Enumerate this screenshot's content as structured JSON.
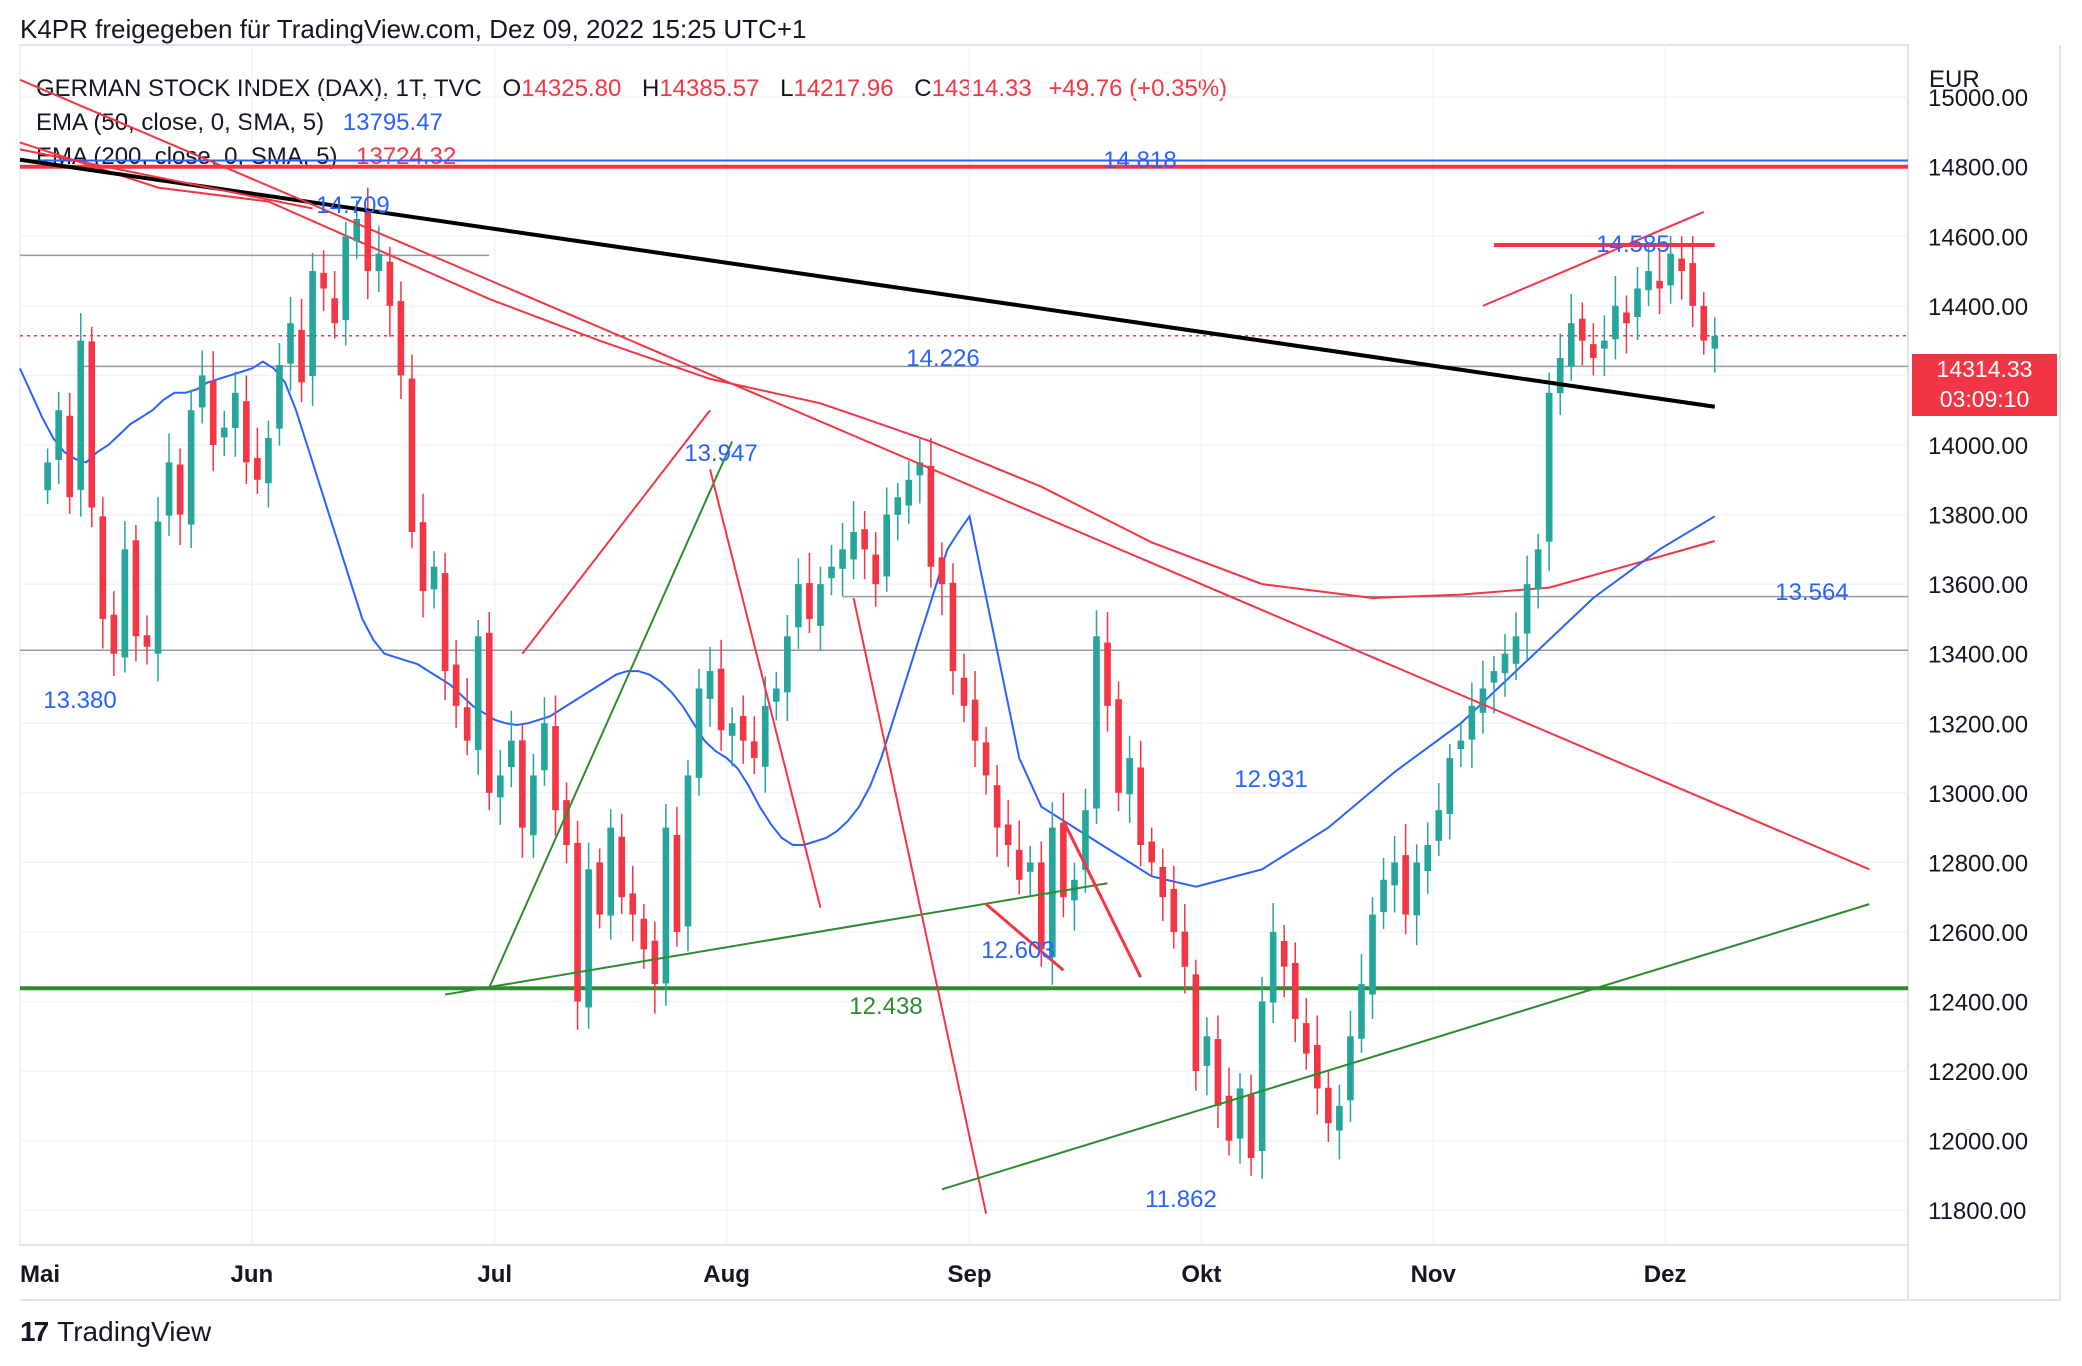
{
  "header": {
    "title": "K4PR freigegeben für TradingView.com, Dez 09, 2022 15:25 UTC+1"
  },
  "legend": {
    "symbol": "GERMAN STOCK INDEX (DAX), 1T, TVC",
    "open_label": "O",
    "open": "14325.80",
    "high_label": "H",
    "high": "14385.57",
    "low_label": "L",
    "low": "14217.96",
    "close_label": "C",
    "close": "14314.33",
    "change": "+49.76 (+0.35%)",
    "ema50_label": "EMA (50, close, 0, SMA, 5)",
    "ema50_value": "13795.47",
    "ema200_label": "EMA (200, close, 0, SMA, 5)",
    "ema200_value": "13724.32"
  },
  "price_axis": {
    "currency": "EUR",
    "current_price": "14314.33",
    "countdown": "03:09:10"
  },
  "footer": {
    "brand": "TradingView",
    "logo_mark": "17"
  },
  "colors": {
    "up": "#26a69a",
    "down": "#f23645",
    "ema50": "#2962ff",
    "ema200": "#f23645",
    "trend_black": "#000000",
    "support_green": "#2e8b2e",
    "resistance_red": "#f23645",
    "level_gray": "#9598a1",
    "annotation_blue": "#2962ff"
  },
  "chart_data": {
    "type": "candlestick",
    "title": "GERMAN STOCK INDEX (DAX), 1T, TVC",
    "ylabel": "EUR",
    "ylim": [
      11700,
      15150
    ],
    "y_ticks": [
      15000,
      14800,
      14600,
      14400,
      14200,
      14000,
      13800,
      13600,
      13400,
      13200,
      13000,
      12800,
      12600,
      12400,
      12200,
      12000,
      11800
    ],
    "y_tick_labels": [
      "15000.00",
      "14800.00",
      "14600.00",
      "14400.00",
      "14200.00",
      "14000.00",
      "13800.00",
      "13600.00",
      "13400.00",
      "13200.00",
      "13000.00",
      "12800.00",
      "12600.00",
      "12400.00",
      "12200.00",
      "12000.00",
      "11800.00"
    ],
    "x_tick_labels": [
      "Mai",
      "Jun",
      "Jul",
      "Aug",
      "Sep",
      "Okt",
      "Nov",
      "Dez"
    ],
    "x_tick_index": [
      -2.5,
      18.5,
      40.5,
      61.5,
      83.5,
      104.5,
      125.5,
      146.5
    ],
    "x_range": [
      -2.5,
      168.5
    ],
    "grid": true,
    "last_index": 151,
    "closes": [
      13950,
      14100,
      13850,
      14300,
      13820,
      13500,
      13400,
      13700,
      13450,
      13420,
      13780,
      13950,
      13800,
      14100,
      14200,
      14000,
      14050,
      14150,
      13950,
      13900,
      14020,
      14230,
      14350,
      14180,
      14500,
      14450,
      14350,
      14600,
      14650,
      14500,
      14550,
      14400,
      14200,
      13750,
      13580,
      13650,
      13350,
      13250,
      13150,
      13450,
      13000,
      13050,
      13150,
      12900,
      13050,
      13200,
      12950,
      12850,
      12400,
      12780,
      12650,
      12900,
      12700,
      12650,
      12550,
      12450,
      12900,
      12600,
      13050,
      13300,
      13350,
      13180,
      13200,
      13150,
      13100,
      13250,
      13300,
      13450,
      13600,
      13500,
      13600,
      13650,
      13700,
      13750,
      13700,
      13600,
      13800,
      13850,
      13900,
      13950,
      13650,
      13600,
      13350,
      13250,
      13150,
      13050,
      12900,
      12850,
      12750,
      12800,
      12550,
      12900,
      12700,
      12750,
      12950,
      13450,
      13250,
      13000,
      13100,
      12850,
      12800,
      12700,
      12600,
      12500,
      12200,
      12300,
      12100,
      12000,
      12150,
      11950,
      12400,
      12600,
      12500,
      12350,
      12250,
      12150,
      12050,
      12100,
      12300,
      12450,
      12650,
      12750,
      12800,
      12650,
      12800,
      12850,
      12950,
      13100,
      13150,
      13250,
      13300,
      13350,
      13400,
      13450,
      13600,
      13700,
      14150,
      14250,
      14350,
      14300,
      14250,
      14300,
      14400,
      14350,
      14450,
      14500,
      14450,
      14550,
      14500,
      14400,
      14300,
      14314
    ],
    "ema50": [
      14220,
      14150,
      14080,
      14020,
      13980,
      13960,
      13950,
      13980,
      14000,
      14030,
      14060,
      14080,
      14100,
      14130,
      14150,
      14150,
      14160,
      14180,
      14190,
      14200,
      14210,
      14220,
      14240,
      14220,
      14180,
      14100,
      14000,
      13900,
      13800,
      13700,
      13600,
      13500,
      13440,
      13400,
      13390,
      13380,
      13370,
      13350,
      13330,
      13310,
      13280,
      13250,
      13230,
      13210,
      13200,
      13195,
      13200,
      13210,
      13220,
      13240,
      13260,
      13280,
      13300,
      13320,
      13340,
      13350,
      13350,
      13340,
      13320,
      13290,
      13250,
      13200,
      13150,
      13120,
      13100,
      13070,
      13020,
      12960,
      12910,
      12870,
      12850,
      12850,
      12860,
      12870,
      12890,
      12920,
      12960,
      13020,
      13100,
      13200,
      13300,
      13400,
      13500,
      13600,
      13700,
      13750,
      13795
    ],
    "ema50_x": [
      -2.5,
      -1.5,
      -0.5,
      0.5,
      1.5,
      2.5,
      3.5,
      4.5,
      5.5,
      6.5,
      7.5,
      8.5,
      9.5,
      10.5,
      11.5,
      12.5,
      13.5,
      14.5,
      15.5,
      16.5,
      17.5,
      18.5,
      19.5,
      20.5,
      21.5,
      22.5,
      23.5,
      24.5,
      25.5,
      26.5,
      27.5,
      28.5,
      29.5,
      30.5,
      31.5,
      32.5,
      33.5,
      34.5,
      35.5,
      36.5,
      37.5,
      38.5,
      39.5,
      40.5,
      41.5,
      42.5,
      43.5,
      44.5,
      45.5,
      46.5,
      47.5,
      48.5,
      49.5,
      50.5,
      51.5,
      52.5,
      53.5,
      54.5,
      55.5,
      56.5,
      57.5,
      58.5,
      59.5,
      60.5,
      61.5,
      62.5,
      63.5,
      64.5,
      65.5,
      66.5,
      67.5,
      68.5,
      69.5,
      70.5,
      71.5,
      72.5,
      73.5,
      74.5,
      75.5,
      76.5,
      77.5,
      78.5,
      79.5,
      80.5,
      81.5,
      82.5,
      83.5
    ],
    "annotations": [
      {
        "text": "14.818",
        "price": 14818
      },
      {
        "text": "14.709",
        "price": 14709
      },
      {
        "text": "14.585",
        "price": 14585
      },
      {
        "text": "14.226",
        "price": 14226
      },
      {
        "text": "13.947",
        "price": 13947
      },
      {
        "text": "13.564",
        "price": 13564
      },
      {
        "text": "13.380",
        "price": 13380
      },
      {
        "text": "12.931",
        "price": 12931
      },
      {
        "text": "12.603",
        "price": 12603
      },
      {
        "text": "12.438",
        "price": 12438
      },
      {
        "text": "11.862",
        "price": 11862
      }
    ]
  }
}
